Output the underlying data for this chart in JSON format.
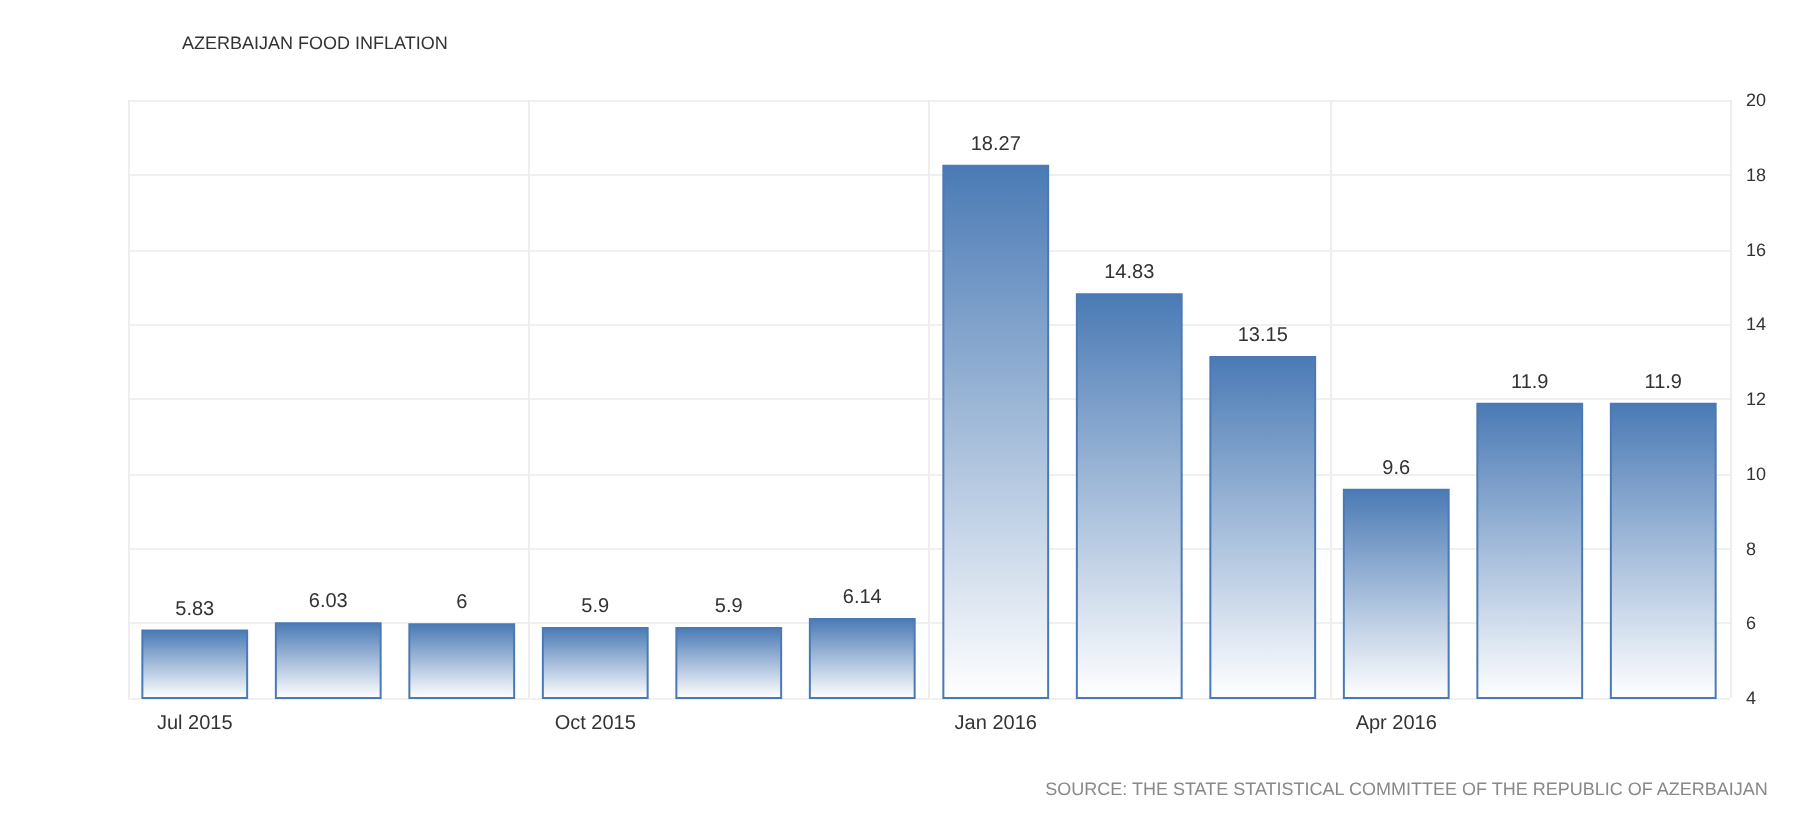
{
  "chart_data": {
    "type": "bar",
    "title": "AZERBAIJAN FOOD INFLATION",
    "categories": [
      "Jul 2015",
      null,
      null,
      "Oct 2015",
      null,
      null,
      "Jan 2016",
      null,
      null,
      "Apr 2016",
      null,
      null
    ],
    "values": [
      5.83,
      6.03,
      6,
      5.9,
      5.9,
      6.14,
      18.27,
      14.83,
      13.15,
      9.6,
      11.9,
      11.9
    ],
    "color": "#4a7ab5",
    "data_labels": true,
    "ylim": [
      4,
      20
    ],
    "yticks": [
      4,
      6,
      8,
      10,
      12,
      14,
      16,
      18,
      20
    ],
    "grid": true,
    "annotations": [
      "SOURCE: THE STATE STATISTICAL COMMITTEE OF THE REPUBLIC OF AZERBAIJAN"
    ]
  }
}
